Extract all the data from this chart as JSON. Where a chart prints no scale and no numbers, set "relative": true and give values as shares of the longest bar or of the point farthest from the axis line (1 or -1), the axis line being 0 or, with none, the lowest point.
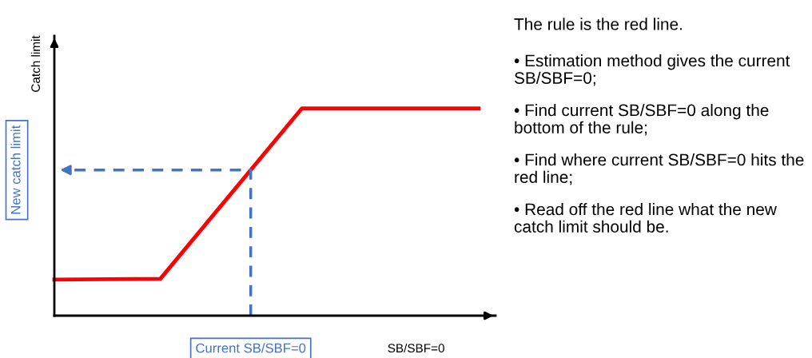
{
  "chart_data": {
    "type": "line",
    "relative": true,
    "xlabel": "SB/SBF=0",
    "ylabel": "Catch limit",
    "categories": [
      null,
      null,
      null,
      null,
      null,
      null,
      null,
      null,
      null,
      null,
      null,
      null,
      null,
      null,
      null,
      null,
      null,
      null,
      null,
      null,
      null,
      null,
      null,
      null,
      null
    ],
    "series": [
      {
        "color": "#ff0000",
        "values": [
          0.174,
          null,
          null,
          null,
          null,
          null,
          0.178,
          null,
          null,
          null,
          null,
          null,
          null,
          null,
          1,
          null,
          null,
          null,
          null,
          null,
          null,
          null,
          null,
          null,
          1
        ]
      }
    ],
    "annotations": [
      "New catch limit",
      "Current SB/SBF=0",
      "The rule is the red line.",
      "• Estimation method gives the current SB/SBF=0;",
      "• Find current SB/SBF=0 along the bottom of the rule;",
      "• Find where current SB/SBF=0 hits the red line;",
      "• Read off the red line what the new catch limit should be."
    ],
    "ref_lines": [
      {
        "axis": "y",
        "value": 0.703,
        "color": "#4472c4",
        "line_style": "dashed"
      }
    ]
  }
}
